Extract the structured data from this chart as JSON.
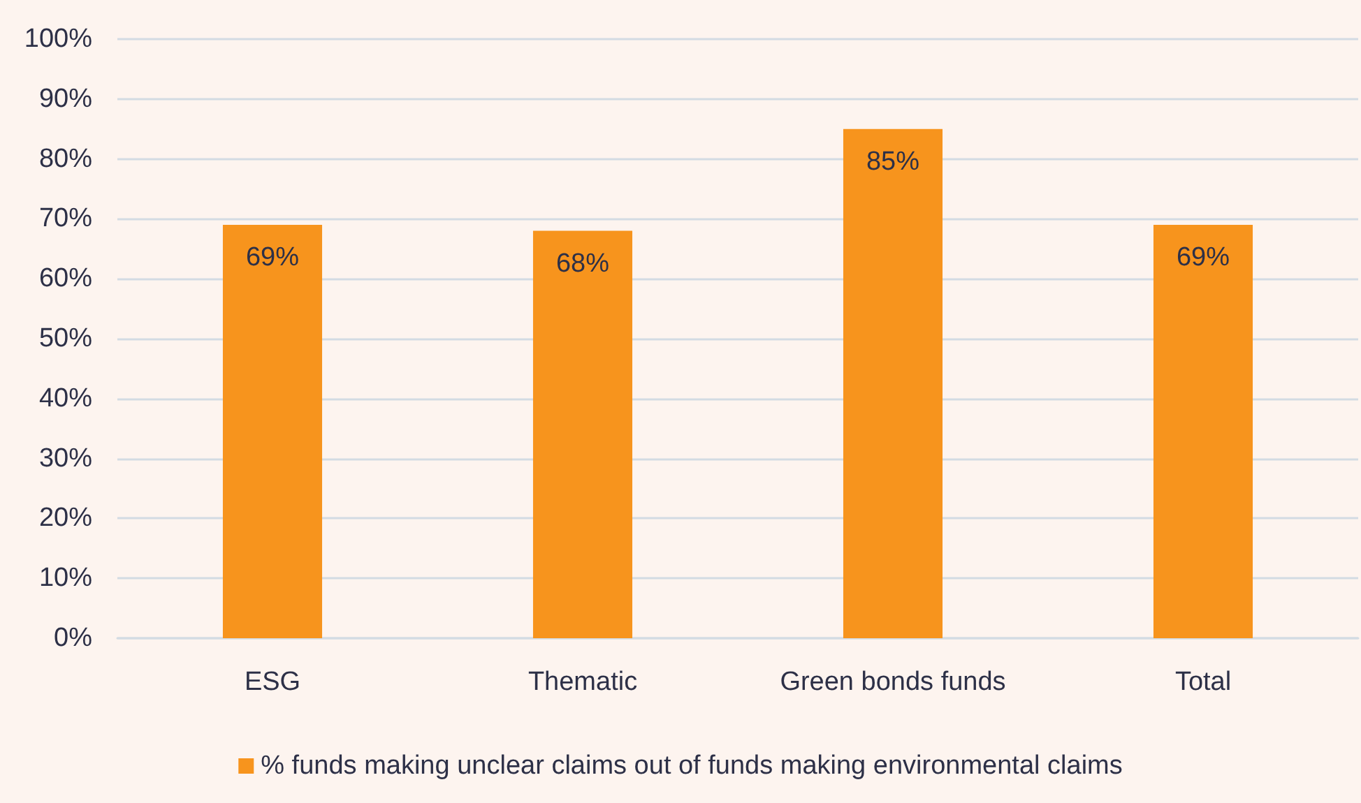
{
  "chart_data": {
    "type": "bar",
    "categories": [
      "ESG",
      "Thematic",
      "Green bonds funds",
      "Total"
    ],
    "series": [
      {
        "name": "% funds making unclear claims out of funds making environmental claims",
        "color": "#f7941d",
        "values": [
          69,
          68,
          85,
          69
        ],
        "value_labels": [
          "69%",
          "68%",
          "85%",
          "69%"
        ]
      }
    ],
    "ylim": [
      0,
      100
    ],
    "yticks": [
      {
        "value": 0,
        "label": "0%"
      },
      {
        "value": 10,
        "label": "10%"
      },
      {
        "value": 20,
        "label": "20%"
      },
      {
        "value": 30,
        "label": "30%"
      },
      {
        "value": 40,
        "label": "40%"
      },
      {
        "value": 50,
        "label": "50%"
      },
      {
        "value": 60,
        "label": "60%"
      },
      {
        "value": 70,
        "label": "70%"
      },
      {
        "value": 80,
        "label": "80%"
      },
      {
        "value": 90,
        "label": "90%"
      },
      {
        "value": 100,
        "label": "100%"
      }
    ],
    "grid": "y",
    "legend": "bottom"
  }
}
